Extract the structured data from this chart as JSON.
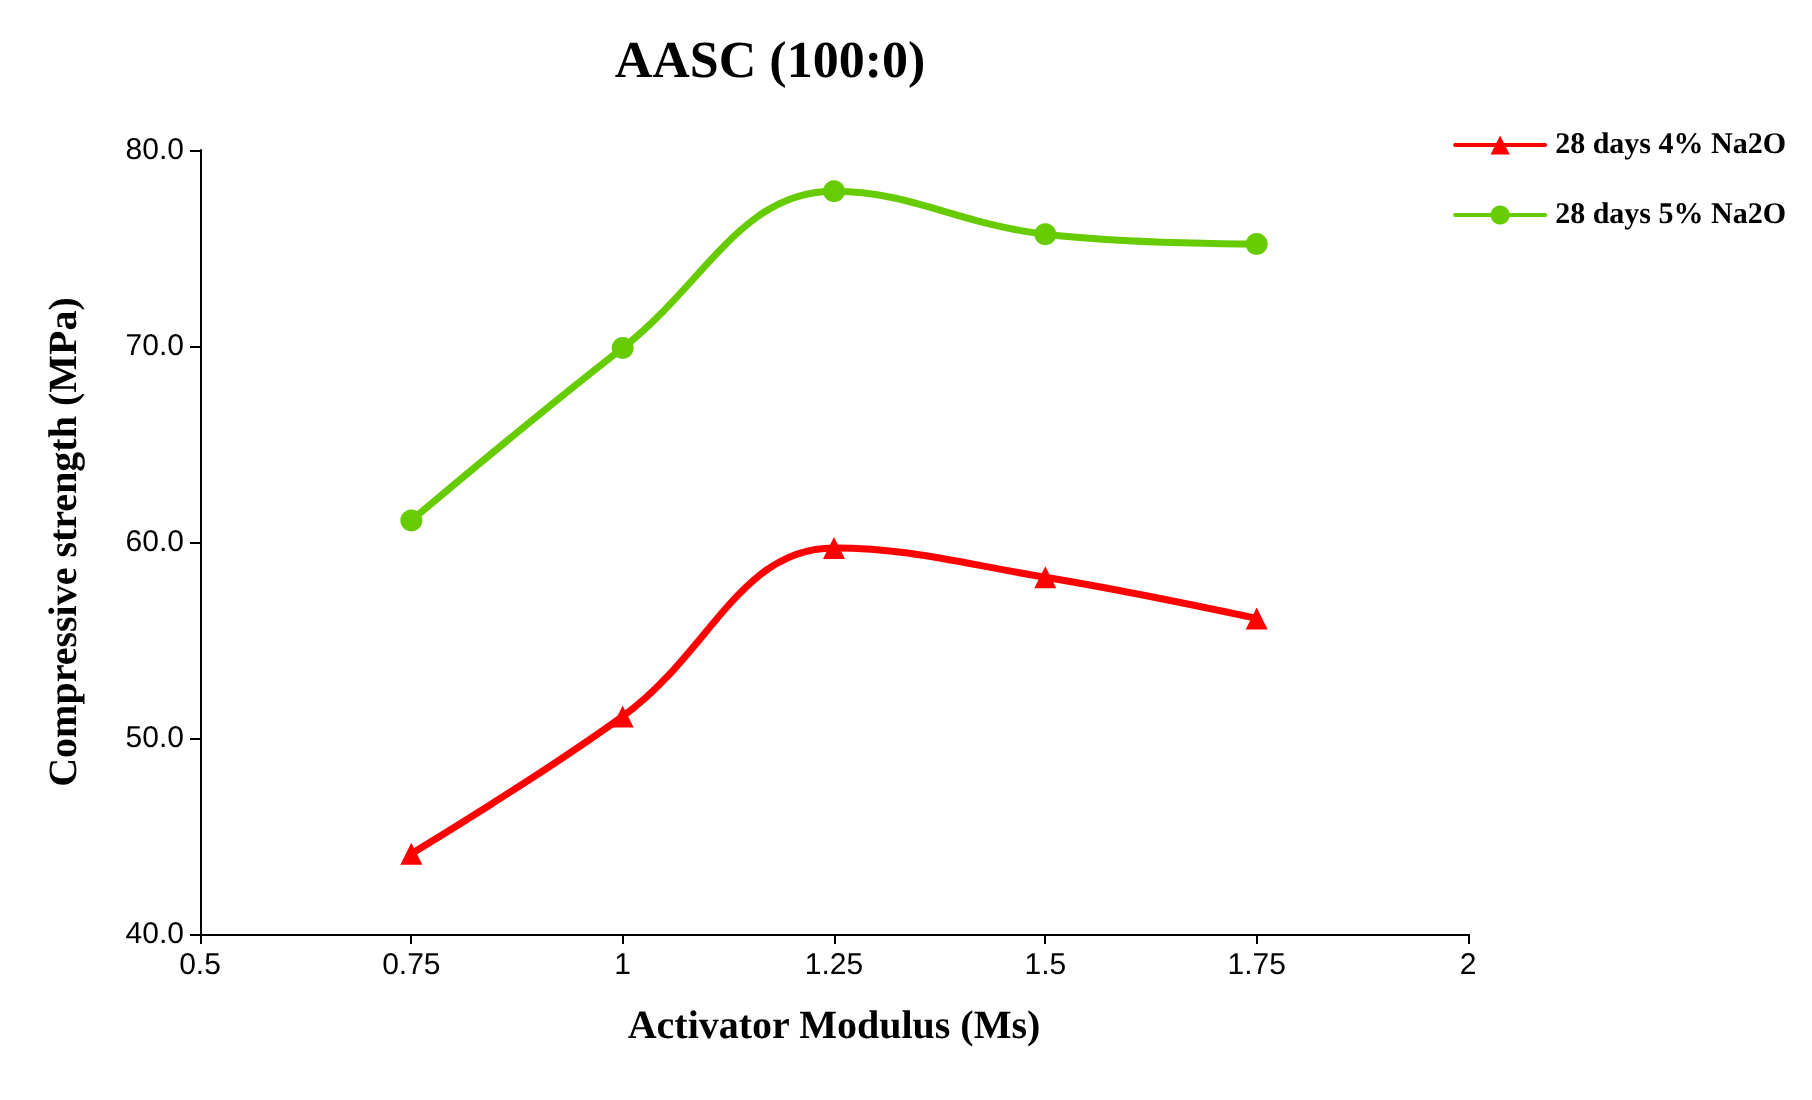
{
  "chart_data": {
    "type": "line",
    "title": "AASC (100:0)",
    "xlabel": "Activator Modulus (Ms)",
    "ylabel": "Compressive strength (MPa)",
    "x": [
      0.75,
      1,
      1.25,
      1.5,
      1.75
    ],
    "series": [
      {
        "name": "28 days 4% Na2O",
        "color": "#ff0000",
        "marker": "triangle",
        "values": [
          44.1,
          51.1,
          59.7,
          58.2,
          56.1
        ]
      },
      {
        "name": "28 days 5% Na2O",
        "color": "#66cc00",
        "marker": "circle",
        "values": [
          61.1,
          69.9,
          77.9,
          75.7,
          75.2
        ]
      }
    ],
    "xlim": [
      0.5,
      2
    ],
    "xticks": [
      0.5,
      {
        "value": 0.75,
        "label": "0.75"
      },
      1,
      {
        "value": 1.25,
        "label": "1.25"
      },
      {
        "value": 1.5,
        "label": "1.5"
      },
      {
        "value": 1.75,
        "label": "1.75"
      },
      2
    ],
    "ylim": [
      40,
      80
    ],
    "yticks": [
      {
        "value": 40,
        "label": "40.0"
      },
      {
        "value": 50,
        "label": "50.0"
      },
      {
        "value": 60,
        "label": "60.0"
      },
      {
        "value": 70,
        "label": "70.0"
      },
      {
        "value": 80,
        "label": "80.0"
      }
    ],
    "grid": false,
    "legend": "top right"
  }
}
